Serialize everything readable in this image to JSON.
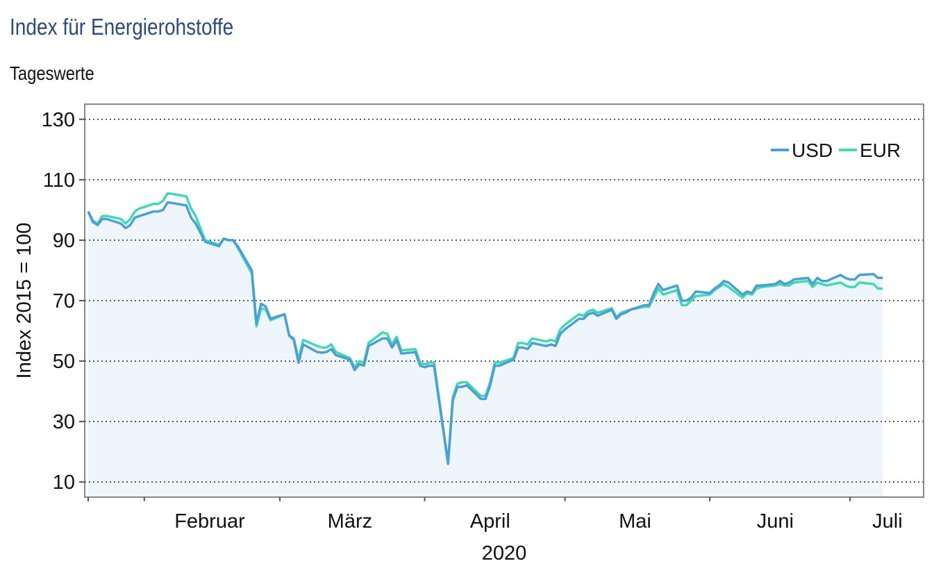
{
  "chart_data": {
    "type": "line",
    "title": "Index für Energierohstoffe",
    "subtitle": "Tageswerte",
    "ylabel": "Index 2015 = 100",
    "xlabel": "2020",
    "ylim": [
      5,
      135
    ],
    "y_ticks": [
      10,
      30,
      50,
      70,
      90,
      110,
      130
    ],
    "grid": "horizontal dotted",
    "legend_position": "top-right",
    "x_range": [
      "2020-01-20",
      "2020-07-16"
    ],
    "month_labels": [
      "Februar",
      "März",
      "April",
      "Mai",
      "Juni",
      "Juli"
    ],
    "month_boundaries": [
      "2020-02-01",
      "2020-03-01",
      "2020-04-01",
      "2020-05-01",
      "2020-06-01",
      "2020-07-01"
    ],
    "month_centers": [
      "2020-02-15",
      "2020-03-16",
      "2020-04-15",
      "2020-05-16",
      "2020-06-15",
      "2020-07-09"
    ],
    "series": [
      {
        "name": "USD",
        "color": "#4a9fd9",
        "points": [
          [
            "2020-01-20",
            99.5
          ],
          [
            "2020-01-21",
            96.0
          ],
          [
            "2020-01-22",
            95.0
          ],
          [
            "2020-01-23",
            97.0
          ],
          [
            "2020-01-24",
            97.0
          ],
          [
            "2020-01-27",
            95.5
          ],
          [
            "2020-01-28",
            94.0
          ],
          [
            "2020-01-29",
            95.0
          ],
          [
            "2020-01-30",
            97.5
          ],
          [
            "2020-01-31",
            98.0
          ],
          [
            "2020-02-03",
            99.5
          ],
          [
            "2020-02-04",
            99.5
          ],
          [
            "2020-02-05",
            100.0
          ],
          [
            "2020-02-06",
            102.5
          ],
          [
            "2020-02-07",
            102.3
          ],
          [
            "2020-02-10",
            101.5
          ],
          [
            "2020-02-11",
            97.5
          ],
          [
            "2020-02-12",
            95.5
          ],
          [
            "2020-02-13",
            92.5
          ],
          [
            "2020-02-14",
            89.5
          ],
          [
            "2020-02-17",
            88.0
          ],
          [
            "2020-02-18",
            90.5
          ],
          [
            "2020-02-19",
            90.0
          ],
          [
            "2020-02-20",
            90.0
          ],
          [
            "2020-02-21",
            88.0
          ],
          [
            "2020-02-24",
            80.0
          ],
          [
            "2020-02-25",
            62.5
          ],
          [
            "2020-02-26",
            69.0
          ],
          [
            "2020-02-27",
            68.0
          ],
          [
            "2020-02-28",
            64.0
          ],
          [
            "2020-03-02",
            65.5
          ],
          [
            "2020-03-03",
            58.5
          ],
          [
            "2020-03-04",
            57.0
          ],
          [
            "2020-03-05",
            49.5
          ],
          [
            "2020-03-06",
            55.5
          ],
          [
            "2020-03-09",
            53.0
          ],
          [
            "2020-03-10",
            52.8
          ],
          [
            "2020-03-11",
            53.0
          ],
          [
            "2020-03-12",
            54.0
          ],
          [
            "2020-03-13",
            52.0
          ],
          [
            "2020-03-16",
            50.5
          ],
          [
            "2020-03-17",
            47.0
          ],
          [
            "2020-03-18",
            49.0
          ],
          [
            "2020-03-19",
            48.5
          ],
          [
            "2020-03-20",
            55.0
          ],
          [
            "2020-03-23",
            57.5
          ],
          [
            "2020-03-24",
            57.5
          ],
          [
            "2020-03-25",
            54.5
          ],
          [
            "2020-03-26",
            57.0
          ],
          [
            "2020-03-27",
            52.5
          ],
          [
            "2020-03-30",
            53.0
          ],
          [
            "2020-03-31",
            48.5
          ],
          [
            "2020-04-01",
            48.0
          ],
          [
            "2020-04-02",
            48.5
          ],
          [
            "2020-04-03",
            48.5
          ],
          [
            "2020-04-06",
            16.0
          ],
          [
            "2020-04-07",
            37.0
          ],
          [
            "2020-04-08",
            41.5
          ],
          [
            "2020-04-09",
            41.5
          ],
          [
            "2020-04-10",
            42.0
          ],
          [
            "2020-04-13",
            37.5
          ],
          [
            "2020-04-14",
            37.5
          ],
          [
            "2020-04-15",
            42.0
          ],
          [
            "2020-04-16",
            48.5
          ],
          [
            "2020-04-17",
            48.5
          ],
          [
            "2020-04-20",
            50.5
          ],
          [
            "2020-04-21",
            54.5
          ],
          [
            "2020-04-22",
            54.5
          ],
          [
            "2020-04-23",
            54.0
          ],
          [
            "2020-04-24",
            56.0
          ],
          [
            "2020-04-27",
            55.0
          ],
          [
            "2020-04-28",
            55.5
          ],
          [
            "2020-04-29",
            55.0
          ],
          [
            "2020-04-30",
            59.0
          ],
          [
            "2020-05-01",
            60.5
          ],
          [
            "2020-05-04",
            64.0
          ],
          [
            "2020-05-05",
            64.0
          ],
          [
            "2020-05-06",
            65.5
          ],
          [
            "2020-05-07",
            66.0
          ],
          [
            "2020-05-08",
            65.0
          ],
          [
            "2020-05-11",
            67.0
          ],
          [
            "2020-05-12",
            64.0
          ],
          [
            "2020-05-13",
            65.5
          ],
          [
            "2020-05-14",
            66.0
          ],
          [
            "2020-05-15",
            67.0
          ],
          [
            "2020-05-18",
            68.5
          ],
          [
            "2020-05-19",
            68.5
          ],
          [
            "2020-05-20",
            72.5
          ],
          [
            "2020-05-21",
            75.5
          ],
          [
            "2020-05-22",
            73.5
          ],
          [
            "2020-05-25",
            75.0
          ],
          [
            "2020-05-26",
            70.0
          ],
          [
            "2020-05-27",
            70.0
          ],
          [
            "2020-05-28",
            71.0
          ],
          [
            "2020-05-29",
            73.0
          ],
          [
            "2020-06-01",
            72.5
          ],
          [
            "2020-06-02",
            74.0
          ],
          [
            "2020-06-03",
            75.0
          ],
          [
            "2020-06-04",
            76.5
          ],
          [
            "2020-06-05",
            76.0
          ],
          [
            "2020-06-08",
            72.0
          ],
          [
            "2020-06-09",
            73.0
          ],
          [
            "2020-06-10",
            72.5
          ],
          [
            "2020-06-11",
            75.0
          ],
          [
            "2020-06-12",
            75.0
          ],
          [
            "2020-06-15",
            75.5
          ],
          [
            "2020-06-16",
            76.5
          ],
          [
            "2020-06-17",
            75.5
          ],
          [
            "2020-06-18",
            76.0
          ],
          [
            "2020-06-19",
            77.0
          ],
          [
            "2020-06-22",
            77.5
          ],
          [
            "2020-06-23",
            75.5
          ],
          [
            "2020-06-24",
            77.5
          ],
          [
            "2020-06-25",
            76.5
          ],
          [
            "2020-06-26",
            76.5
          ],
          [
            "2020-06-29",
            78.5
          ],
          [
            "2020-06-30",
            77.5
          ],
          [
            "2020-07-01",
            77.0
          ],
          [
            "2020-07-02",
            77.0
          ],
          [
            "2020-07-03",
            78.5
          ],
          [
            "2020-07-06",
            78.8
          ],
          [
            "2020-07-07",
            77.5
          ],
          [
            "2020-07-08",
            77.5
          ]
        ]
      },
      {
        "name": "EUR",
        "color": "#40d9b0",
        "points": [
          [
            "2020-01-20",
            99.5
          ],
          [
            "2020-01-21",
            96.5
          ],
          [
            "2020-01-22",
            95.5
          ],
          [
            "2020-01-23",
            98.0
          ],
          [
            "2020-01-24",
            98.0
          ],
          [
            "2020-01-27",
            97.0
          ],
          [
            "2020-01-28",
            95.5
          ],
          [
            "2020-01-29",
            97.0
          ],
          [
            "2020-01-30",
            99.5
          ],
          [
            "2020-01-31",
            100.5
          ],
          [
            "2020-02-03",
            102.0
          ],
          [
            "2020-02-04",
            102.0
          ],
          [
            "2020-02-05",
            103.0
          ],
          [
            "2020-02-06",
            105.5
          ],
          [
            "2020-02-07",
            105.3
          ],
          [
            "2020-02-10",
            104.5
          ],
          [
            "2020-02-11",
            100.5
          ],
          [
            "2020-02-12",
            98.0
          ],
          [
            "2020-02-13",
            94.0
          ],
          [
            "2020-02-14",
            90.0
          ],
          [
            "2020-02-17",
            88.5
          ],
          [
            "2020-02-18",
            90.5
          ],
          [
            "2020-02-19",
            90.0
          ],
          [
            "2020-02-20",
            90.0
          ],
          [
            "2020-02-21",
            87.5
          ],
          [
            "2020-02-24",
            79.0
          ],
          [
            "2020-02-25",
            61.5
          ],
          [
            "2020-02-26",
            67.5
          ],
          [
            "2020-02-27",
            67.0
          ],
          [
            "2020-02-28",
            63.5
          ],
          [
            "2020-03-02",
            65.5
          ],
          [
            "2020-03-03",
            58.5
          ],
          [
            "2020-03-04",
            57.5
          ],
          [
            "2020-03-05",
            50.5
          ],
          [
            "2020-03-06",
            57.0
          ],
          [
            "2020-03-09",
            55.0
          ],
          [
            "2020-03-10",
            54.5
          ],
          [
            "2020-03-11",
            54.5
          ],
          [
            "2020-03-12",
            55.5
          ],
          [
            "2020-03-13",
            53.0
          ],
          [
            "2020-03-16",
            51.0
          ],
          [
            "2020-03-17",
            48.0
          ],
          [
            "2020-03-18",
            50.0
          ],
          [
            "2020-03-19",
            49.5
          ],
          [
            "2020-03-20",
            56.0
          ],
          [
            "2020-03-23",
            59.5
          ],
          [
            "2020-03-24",
            59.0
          ],
          [
            "2020-03-25",
            55.5
          ],
          [
            "2020-03-26",
            58.0
          ],
          [
            "2020-03-27",
            53.5
          ],
          [
            "2020-03-30",
            54.0
          ],
          [
            "2020-03-31",
            49.5
          ],
          [
            "2020-04-01",
            49.0
          ],
          [
            "2020-04-02",
            49.5
          ],
          [
            "2020-04-03",
            49.5
          ],
          [
            "2020-04-06",
            16.5
          ],
          [
            "2020-04-07",
            38.0
          ],
          [
            "2020-04-08",
            42.5
          ],
          [
            "2020-04-09",
            43.0
          ],
          [
            "2020-04-10",
            43.0
          ],
          [
            "2020-04-13",
            38.5
          ],
          [
            "2020-04-14",
            38.5
          ],
          [
            "2020-04-15",
            43.0
          ],
          [
            "2020-04-16",
            49.5
          ],
          [
            "2020-04-17",
            49.5
          ],
          [
            "2020-04-20",
            51.0
          ],
          [
            "2020-04-21",
            56.0
          ],
          [
            "2020-04-22",
            56.0
          ],
          [
            "2020-04-23",
            55.5
          ],
          [
            "2020-04-24",
            57.5
          ],
          [
            "2020-04-27",
            56.5
          ],
          [
            "2020-04-28",
            57.0
          ],
          [
            "2020-04-29",
            56.5
          ],
          [
            "2020-04-30",
            60.5
          ],
          [
            "2020-05-01",
            62.0
          ],
          [
            "2020-05-04",
            65.5
          ],
          [
            "2020-05-05",
            65.0
          ],
          [
            "2020-05-06",
            66.5
          ],
          [
            "2020-05-07",
            67.0
          ],
          [
            "2020-05-08",
            66.0
          ],
          [
            "2020-05-11",
            67.5
          ],
          [
            "2020-05-12",
            64.5
          ],
          [
            "2020-05-13",
            66.0
          ],
          [
            "2020-05-14",
            66.5
          ],
          [
            "2020-05-15",
            67.0
          ],
          [
            "2020-05-18",
            68.0
          ],
          [
            "2020-05-19",
            68.0
          ],
          [
            "2020-05-20",
            71.0
          ],
          [
            "2020-05-21",
            74.0
          ],
          [
            "2020-05-22",
            72.0
          ],
          [
            "2020-05-25",
            73.5
          ],
          [
            "2020-05-26",
            68.5
          ],
          [
            "2020-05-27",
            68.5
          ],
          [
            "2020-05-28",
            70.0
          ],
          [
            "2020-05-29",
            71.5
          ],
          [
            "2020-06-01",
            72.0
          ],
          [
            "2020-06-02",
            73.5
          ],
          [
            "2020-06-03",
            74.5
          ],
          [
            "2020-06-04",
            75.5
          ],
          [
            "2020-06-05",
            74.5
          ],
          [
            "2020-06-08",
            71.0
          ],
          [
            "2020-06-09",
            72.5
          ],
          [
            "2020-06-10",
            72.0
          ],
          [
            "2020-06-11",
            74.0
          ],
          [
            "2020-06-12",
            74.5
          ],
          [
            "2020-06-15",
            75.0
          ],
          [
            "2020-06-16",
            75.5
          ],
          [
            "2020-06-17",
            75.0
          ],
          [
            "2020-06-18",
            75.0
          ],
          [
            "2020-06-19",
            76.0
          ],
          [
            "2020-06-22",
            76.5
          ],
          [
            "2020-06-23",
            74.5
          ],
          [
            "2020-06-24",
            76.0
          ],
          [
            "2020-06-25",
            75.5
          ],
          [
            "2020-06-26",
            75.0
          ],
          [
            "2020-06-29",
            76.0
          ],
          [
            "2020-06-30",
            75.0
          ],
          [
            "2020-07-01",
            74.5
          ],
          [
            "2020-07-02",
            74.5
          ],
          [
            "2020-07-03",
            76.0
          ],
          [
            "2020-07-06",
            75.5
          ],
          [
            "2020-07-07",
            74.0
          ],
          [
            "2020-07-08",
            74.0
          ]
        ]
      }
    ]
  }
}
